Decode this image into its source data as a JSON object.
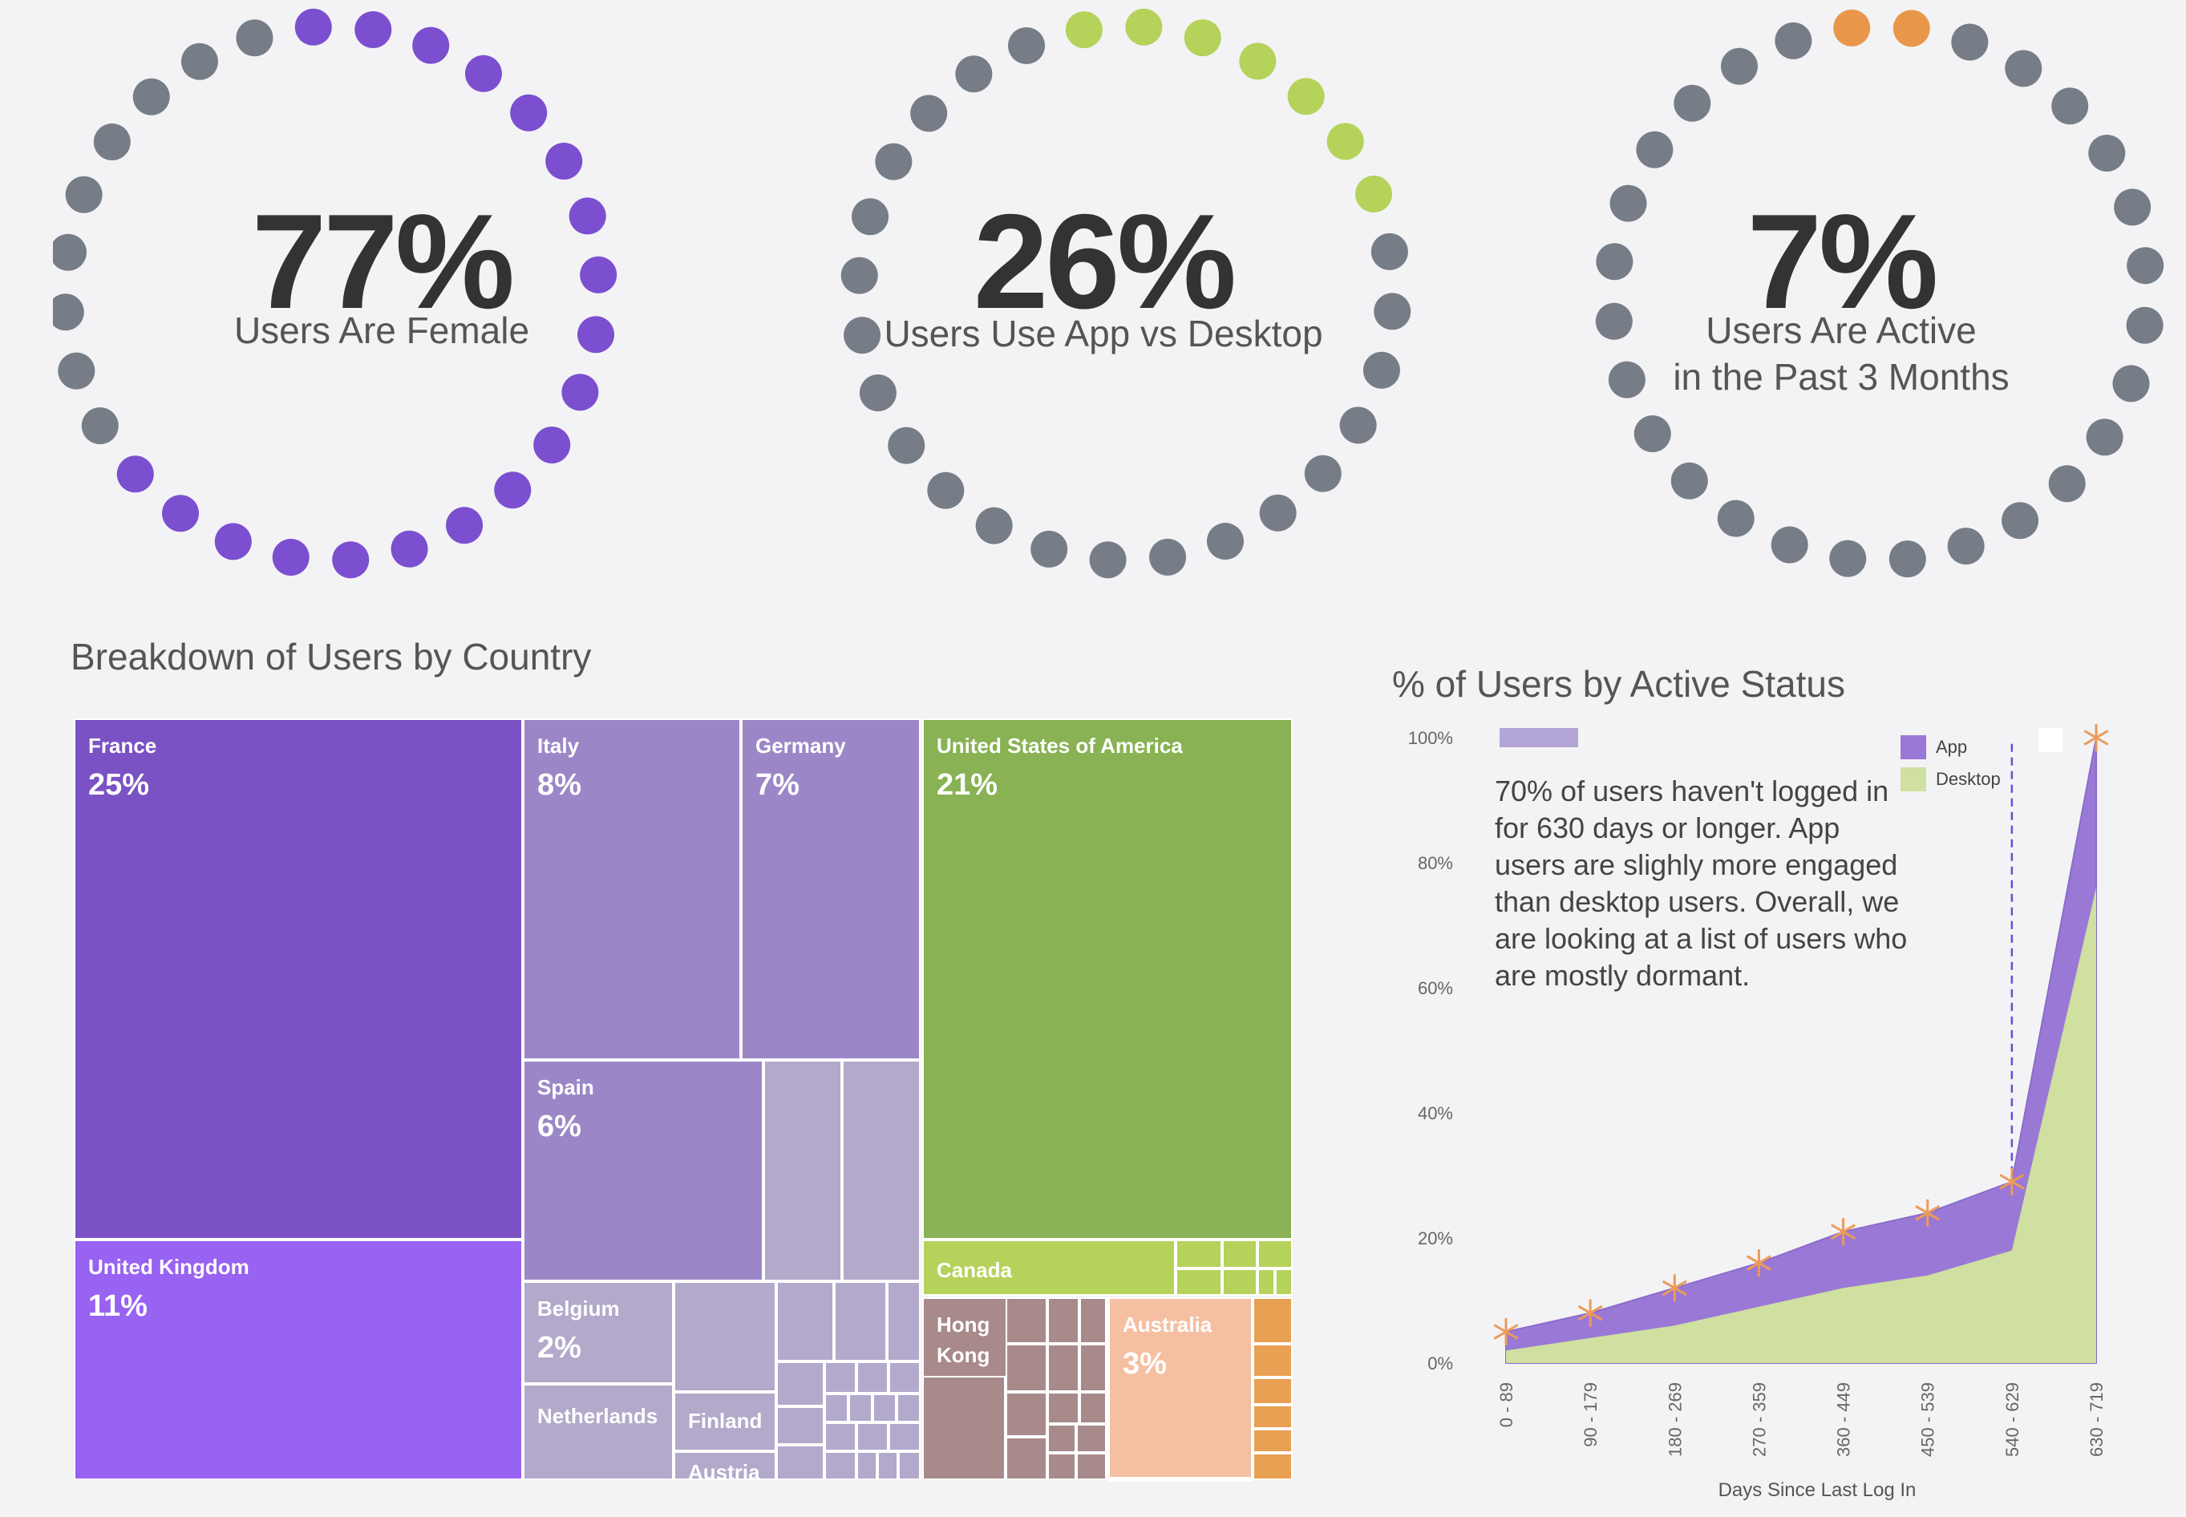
{
  "kpis": [
    {
      "value": "77%",
      "label": "Users Are Female",
      "accent": "#7b4fcf",
      "base": "#777d86",
      "filled": 19,
      "total": 28
    },
    {
      "value": "26%",
      "label": "Users Use App vs Desktop",
      "accent": "#b5d25a",
      "base": "#777d86",
      "filled": 7,
      "total": 28
    },
    {
      "value": "7%",
      "label": "Users Are Active in the Past 3 Months",
      "label_lines": [
        "Users Are Active",
        "in the Past 3 Months"
      ],
      "accent": "#e8974a",
      "base": "#777d86",
      "filled": 2,
      "total": 28
    }
  ],
  "treemap": {
    "title": "Breakdown of Users by Country",
    "colors": {
      "purple_dark": "#7a52c4",
      "purple_bright": "#9862f2",
      "purple_mid": "#9b87c7",
      "purple_light": "#b2a9cb",
      "green": "#88b253",
      "green_light": "#b5d25a",
      "brown": "#a88a8b",
      "peach": "#f5bfa1",
      "orange": "#e8a052"
    },
    "countries": [
      {
        "name": "France",
        "pct": "25%"
      },
      {
        "name": "United Kingdom",
        "pct": "11%"
      },
      {
        "name": "Italy",
        "pct": "8%"
      },
      {
        "name": "Germany",
        "pct": "7%"
      },
      {
        "name": "Spain",
        "pct": "6%"
      },
      {
        "name": "Belgium",
        "pct": "2%"
      },
      {
        "name": "Netherlands",
        "pct": ""
      },
      {
        "name": "Finland",
        "pct": ""
      },
      {
        "name": "Austria",
        "pct": ""
      },
      {
        "name": "United States of America",
        "pct": "21%"
      },
      {
        "name": "Canada",
        "pct": ""
      },
      {
        "name": "Hong Kong",
        "pct": ""
      },
      {
        "name": "Australia",
        "pct": "3%"
      }
    ]
  },
  "chart_data": {
    "type": "area",
    "title": "% of Users by Active Status",
    "xlabel": "Days Since Last Log In",
    "ylabel": "",
    "categories": [
      "0 - 89",
      "90 - 179",
      "180 - 269",
      "270 - 359",
      "360 - 449",
      "450 - 539",
      "540 - 629",
      "630 - 719"
    ],
    "y_ticks": [
      "0%",
      "20%",
      "40%",
      "60%",
      "80%",
      "100%"
    ],
    "ylim": [
      0,
      100
    ],
    "legend_position": "top-right",
    "series": [
      {
        "name": "App",
        "values": [
          5,
          8,
          12,
          16,
          21,
          24,
          29,
          100
        ],
        "color": "#9a79d6"
      },
      {
        "name": "Desktop",
        "values": [
          2,
          4,
          6,
          9,
          12,
          14,
          18,
          76
        ],
        "color": "#cfe0a0"
      }
    ],
    "reference_line_at": "540 - 629",
    "annotation": "70% of users haven't logged in for 630 days or longer. App users are slighly more engaged than desktop users. Overall, we are looking at a list of users who are mostly dormant."
  }
}
